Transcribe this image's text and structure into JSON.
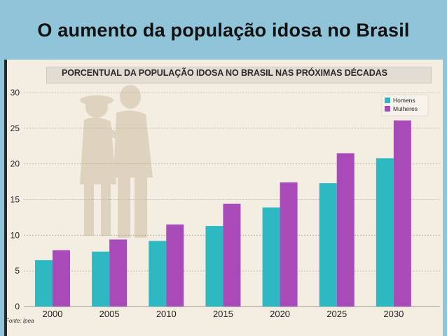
{
  "slide": {
    "title": "O aumento da população idosa no Brasil"
  },
  "chart_data": {
    "type": "bar",
    "title": "PORCENTUAL DA POPULAÇÃO IDOSA NO BRASIL NAS PRÓXIMAS DÉCADAS",
    "source": "Fonte: Ipea",
    "categories": [
      "2000",
      "2005",
      "2010",
      "2015",
      "2020",
      "2025",
      "2030"
    ],
    "series": [
      {
        "name": "Homens",
        "color": "#2eb8c2",
        "values": [
          6.5,
          7.7,
          9.2,
          11.3,
          13.9,
          17.3,
          20.8
        ]
      },
      {
        "name": "Mulheres",
        "color": "#a84bb8",
        "values": [
          7.9,
          9.4,
          11.5,
          14.4,
          17.4,
          21.5,
          26.1
        ]
      }
    ],
    "ylim": [
      0,
      30
    ],
    "yticks": [
      0,
      5,
      10,
      15,
      20,
      25,
      30
    ],
    "xlabel": "",
    "ylabel": "",
    "grid": true,
    "legend": "top-right"
  }
}
